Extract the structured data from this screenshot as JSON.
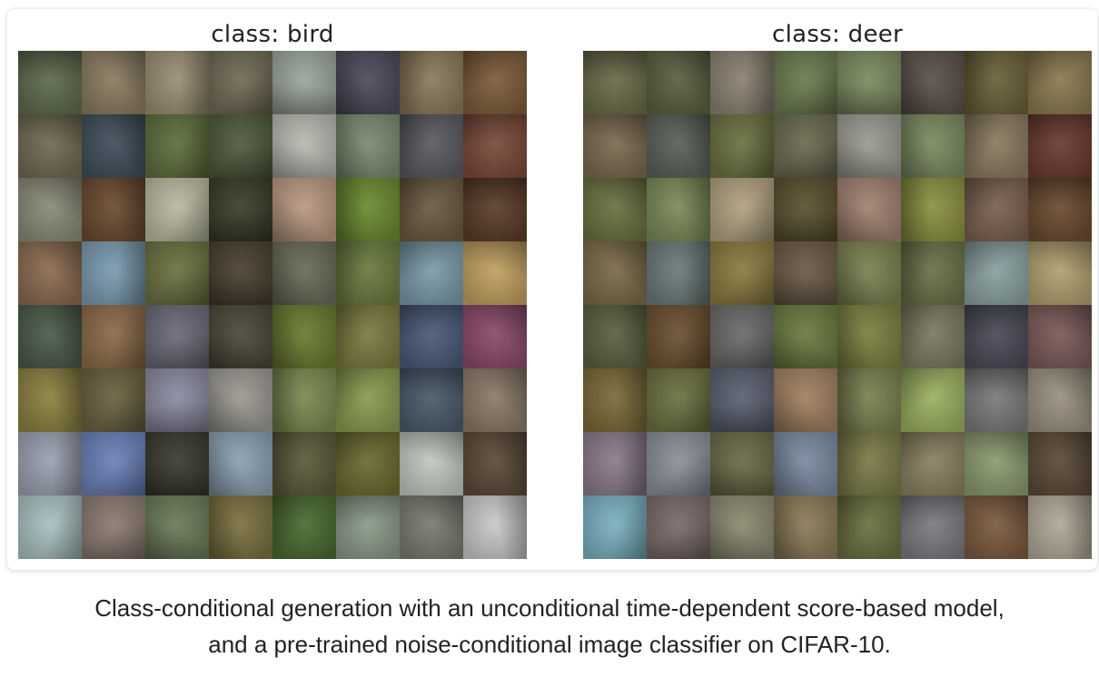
{
  "panels": [
    {
      "title": "class: bird",
      "tiles": [
        "#5d6b4c",
        "#8a7b60",
        "#9a8e74",
        "#6f6a55",
        "#9aa59a",
        "#4b4a5a",
        "#8a7a5c",
        "#7c5c3a",
        "#6e6a52",
        "#3f4e5a",
        "#5d6e3c",
        "#4e5a3c",
        "#b8b8b0",
        "#7a8a70",
        "#5a5a60",
        "#7a4a3a",
        "#8a8a78",
        "#6a4a30",
        "#b8b8a0",
        "#3c3c2a",
        "#b89880",
        "#6a8a30",
        "#6a5a40",
        "#5a3c28",
        "#8a6a50",
        "#7a9ab0",
        "#6a7040",
        "#4a4030",
        "#6a6a58",
        "#6a7a40",
        "#7a9aa8",
        "#c0a060",
        "#4a5a48",
        "#8a6a48",
        "#6a6a78",
        "#4a4838",
        "#6a7a30",
        "#7a7a40",
        "#4a5a78",
        "#8a4a6a",
        "#8a8040",
        "#6a6040",
        "#8a8aa0",
        "#9a9890",
        "#7a8a50",
        "#8a9a50",
        "#4a5a6a",
        "#8a7a68",
        "#9aa0b0",
        "#6a80b8",
        "#3a3a30",
        "#8aa0b0",
        "#5a5a3a",
        "#6a6a30",
        "#c0c8c0",
        "#5a4a38",
        "#a8c0c0",
        "#8a7a70",
        "#6a7a58",
        "#7a7040",
        "#4a6a30",
        "#8a9a88",
        "#7a7a70",
        "#c8c8c8"
      ]
    },
    {
      "title": "class: deer",
      "tiles": [
        "#6a6a48",
        "#5a6040",
        "#8a8070",
        "#6a7a50",
        "#7a8a60",
        "#5a5048",
        "#6a6038",
        "#8a7a50",
        "#7a6a50",
        "#5a6058",
        "#6a7040",
        "#6a6a50",
        "#9a9a90",
        "#7a8a60",
        "#8a7a60",
        "#6a3a30",
        "#6a7040",
        "#7a8a58",
        "#b0a080",
        "#5a5030",
        "#a08070",
        "#8a9040",
        "#7a6050",
        "#6a4a30",
        "#7a6a48",
        "#6a7a78",
        "#8a7a40",
        "#6a5a48",
        "#7a8050",
        "#6a7048",
        "#8aa0a0",
        "#b0a070",
        "#5a6040",
        "#6a5030",
        "#6a6a68",
        "#6a7a40",
        "#7a8040",
        "#7a7a60",
        "#4a4a58",
        "#7a5a58",
        "#7a6a38",
        "#6a7040",
        "#5a6070",
        "#a08060",
        "#7a8050",
        "#9ab060",
        "#7a7a78",
        "#9a9080",
        "#8a7a88",
        "#8a9098",
        "#6a6a48",
        "#7a8aa0",
        "#7a7a48",
        "#8a8060",
        "#8a9a70",
        "#5a4a38",
        "#7ab0c0",
        "#7a6a68",
        "#8a8a70",
        "#8a7a58",
        "#6a7040",
        "#7a7a80",
        "#7a5a40",
        "#b0a898"
      ]
    }
  ],
  "caption": {
    "line1": "Class-conditional generation with an unconditional time-dependent score-based model,",
    "line2": "and a pre-trained noise-conditional image classifier on CIFAR-10."
  }
}
